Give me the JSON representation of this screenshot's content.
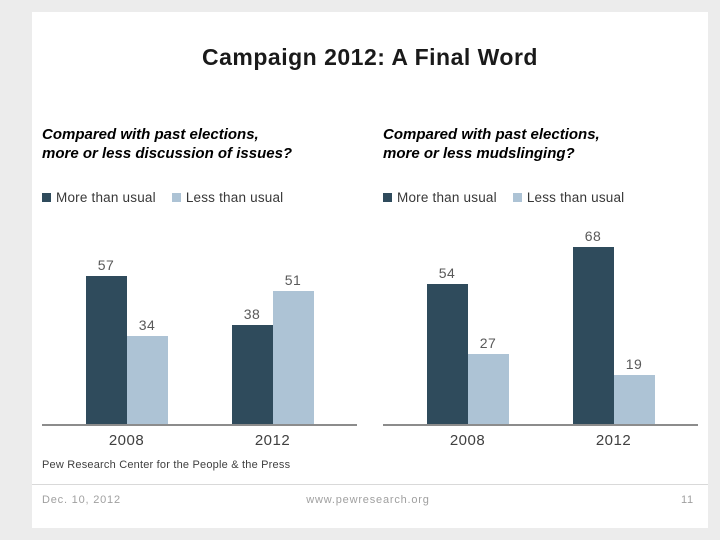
{
  "slide": {
    "title": "Campaign 2012: A Final Word",
    "footer": {
      "source": "Pew Research Center for the People & the Press",
      "date": "Dec. 10, 2012",
      "url": "www.pewresearch.org",
      "page_number": "11"
    }
  },
  "colors": {
    "more_series": "#2f4b5c",
    "less_series": "#adc3d5",
    "axis": "#8c8c8c"
  },
  "chart_data": [
    {
      "type": "bar",
      "title": "Compared with past elections, more or less discussion of issues?",
      "title_lines": [
        "Compared with past elections,",
        "more or less discussion of issues?"
      ],
      "categories": [
        "2008",
        "2012"
      ],
      "series": [
        {
          "name": "More than usual",
          "values": [
            57,
            38
          ]
        },
        {
          "name": "Less than usual",
          "values": [
            34,
            51
          ]
        }
      ],
      "ylim": [
        0,
        75
      ],
      "grid": false,
      "legend_position": "top",
      "data_labels": true
    },
    {
      "type": "bar",
      "title": "Compared with past elections, more or less mudslinging?",
      "title_lines": [
        "Compared with past elections,",
        "more or less mudslinging?"
      ],
      "categories": [
        "2008",
        "2012"
      ],
      "series": [
        {
          "name": "More than usual",
          "values": [
            54,
            68
          ]
        },
        {
          "name": "Less than usual",
          "values": [
            27,
            19
          ]
        }
      ],
      "ylim": [
        0,
        75
      ],
      "grid": false,
      "legend_position": "top",
      "data_labels": true
    }
  ]
}
